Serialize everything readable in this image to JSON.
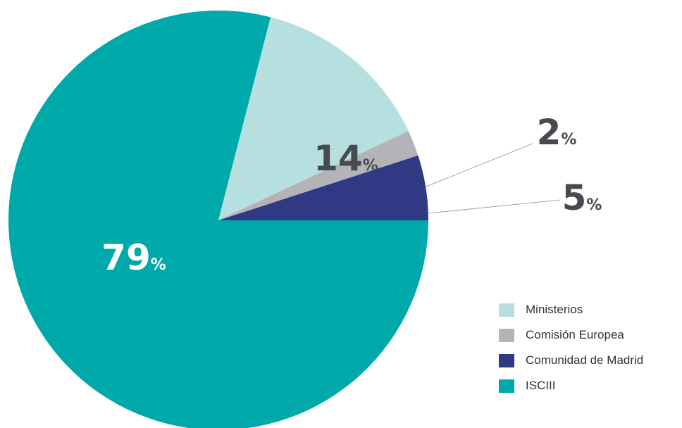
{
  "chart_data": {
    "type": "pie",
    "title": "",
    "legend_position": "bottom-right",
    "slices": [
      {
        "name": "ISCIII",
        "value": 79,
        "label_num": "79",
        "label_unit": "%",
        "color": "#00a9a9",
        "label_color": "#ffffff"
      },
      {
        "name": "Ministerios",
        "value": 14,
        "label_num": "14",
        "label_unit": "%",
        "color": "#b6dfdf",
        "label_color": "#474b4f"
      },
      {
        "name": "Comisión Europea",
        "value": 2,
        "label_num": "2",
        "label_unit": "%",
        "color": "#b3b3b8",
        "label_color": "#474b4f"
      },
      {
        "name": "Comunidad de Madrid",
        "value": 5,
        "label_num": "5",
        "label_unit": "%",
        "color": "#303983",
        "label_color": "#474b4f"
      }
    ],
    "legend": [
      {
        "label": "Ministerios",
        "color": "#b6dfdf"
      },
      {
        "label": "Comisión Europea",
        "color": "#b3b3b8"
      },
      {
        "label": "Comunidad de Madrid",
        "color": "#303983"
      },
      {
        "label": "ISCIII",
        "color": "#00a9a9"
      }
    ]
  }
}
